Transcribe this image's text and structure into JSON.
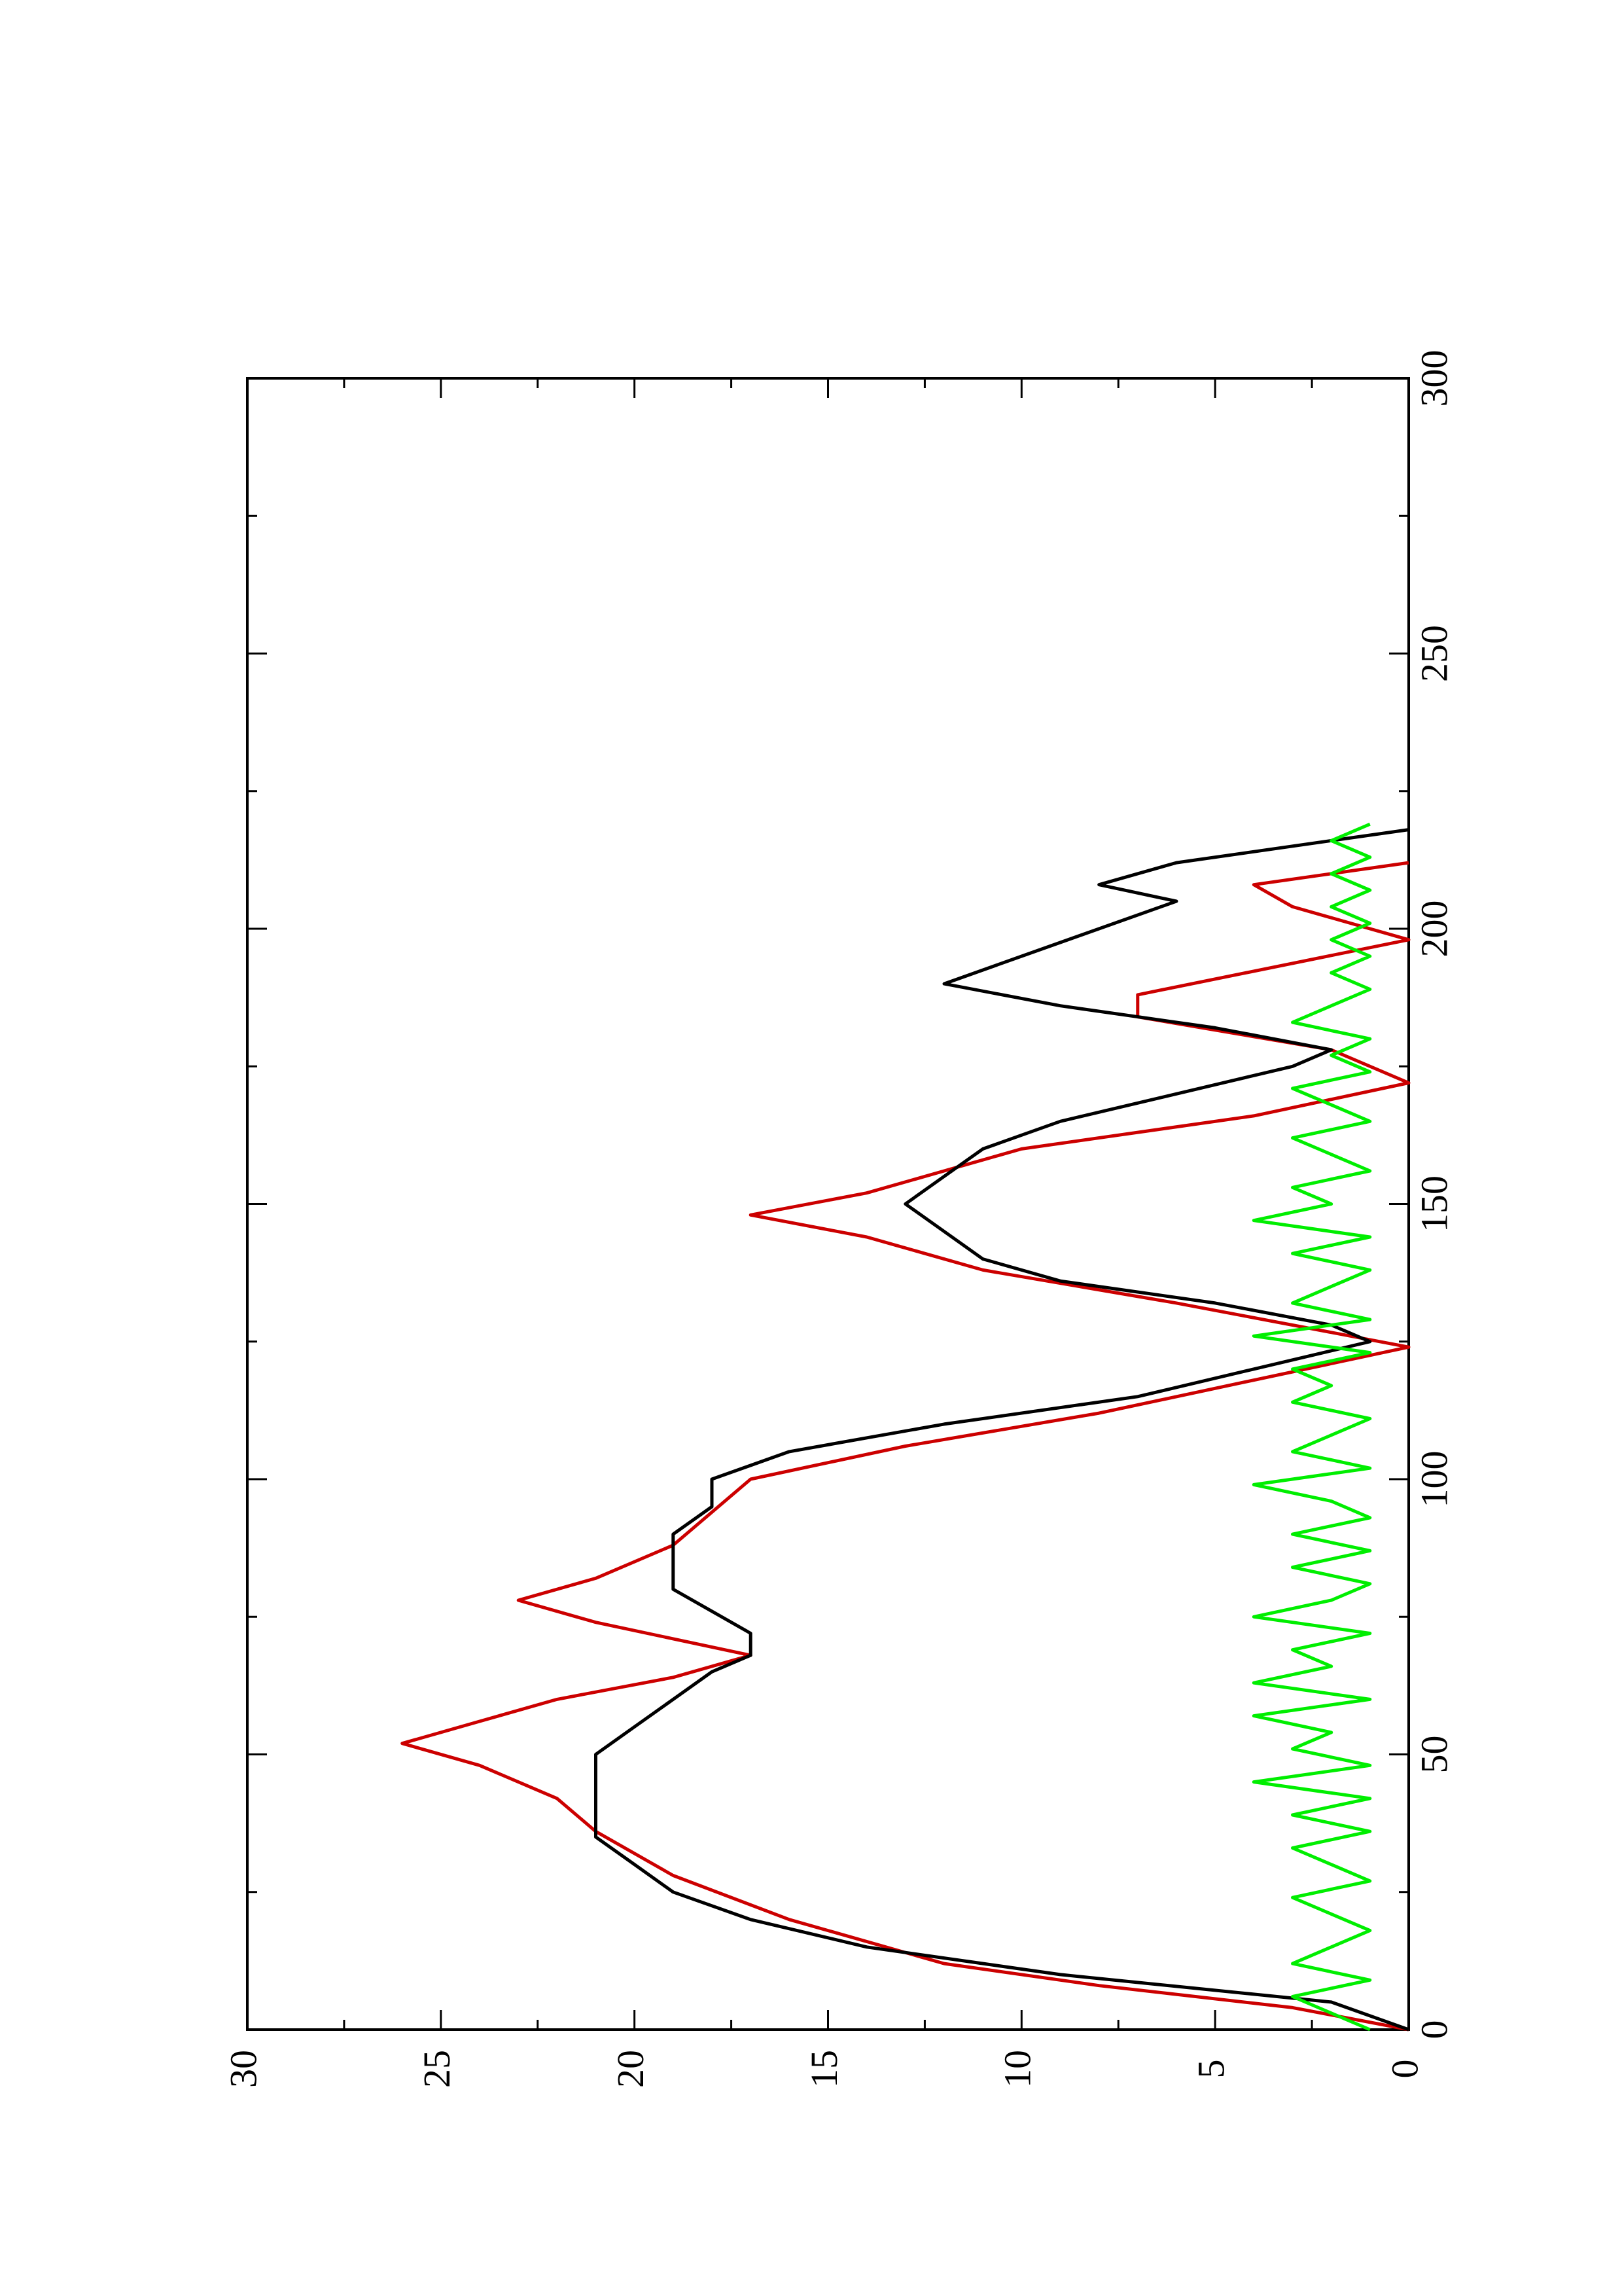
{
  "chart_data": {
    "type": "line",
    "orientation": "rotated-90-ccw",
    "title": "",
    "xlabel": "",
    "ylabel": "",
    "xlim": [
      0,
      300
    ],
    "ylim": [
      0,
      30
    ],
    "x_ticks": [
      "0",
      "50",
      "100",
      "150",
      "200",
      "250",
      "300"
    ],
    "y_ticks": [
      "0",
      "5",
      "10",
      "15",
      "20",
      "25",
      "30"
    ],
    "grid": false,
    "legend": "none",
    "series": [
      {
        "color": "#cc0000",
        "style": "step",
        "x": [
          0,
          4,
          8,
          12,
          20,
          28,
          36,
          42,
          48,
          52,
          56,
          60,
          64,
          68,
          74,
          78,
          82,
          88,
          100,
          106,
          112,
          124,
          132,
          138,
          144,
          148,
          152,
          156,
          160,
          166,
          172,
          178,
          184,
          188,
          198,
          204,
          208,
          212
        ],
        "y": [
          0,
          3,
          8,
          12,
          16,
          19,
          21,
          22,
          24,
          26,
          24,
          22,
          19,
          17,
          21,
          23,
          21,
          19,
          17,
          13,
          8,
          0,
          6,
          11,
          14,
          17,
          14,
          12,
          10,
          4,
          0,
          2,
          7,
          7,
          0,
          3,
          4,
          0
        ]
      },
      {
        "color": "#000000",
        "style": "line",
        "x": [
          0,
          5,
          10,
          15,
          20,
          25,
          30,
          35,
          40,
          45,
          50,
          55,
          60,
          65,
          68,
          72,
          76,
          80,
          85,
          90,
          95,
          100,
          105,
          110,
          115,
          120,
          125,
          128,
          132,
          136,
          140,
          145,
          150,
          155,
          160,
          165,
          170,
          175,
          178,
          182,
          186,
          190,
          195,
          200,
          205,
          208,
          212,
          216,
          218
        ],
        "y": [
          0,
          2,
          9,
          14,
          17,
          19,
          20,
          21,
          21,
          21,
          21,
          20,
          19,
          18,
          17,
          17,
          18,
          19,
          19,
          19,
          18,
          18,
          16,
          12,
          7,
          4,
          1,
          2,
          5,
          9,
          11,
          12,
          13,
          12,
          11,
          9,
          6,
          3,
          2,
          5,
          9,
          12,
          10,
          8,
          6,
          8,
          6,
          2,
          0
        ]
      },
      {
        "color": "#00ee00",
        "style": "line",
        "x": [
          0,
          3,
          6,
          9,
          12,
          15,
          18,
          21,
          24,
          27,
          30,
          33,
          36,
          39,
          42,
          45,
          48,
          51,
          54,
          57,
          60,
          63,
          66,
          69,
          72,
          75,
          78,
          81,
          84,
          87,
          90,
          93,
          96,
          99,
          102,
          105,
          108,
          111,
          114,
          117,
          120,
          123,
          126,
          129,
          132,
          135,
          138,
          141,
          144,
          147,
          150,
          153,
          156,
          159,
          162,
          165,
          168,
          171,
          174,
          177,
          180,
          183,
          186,
          189,
          192,
          195,
          198,
          201,
          204,
          207,
          210,
          213,
          216,
          219
        ],
        "y": [
          1,
          2,
          3,
          1,
          3,
          2,
          1,
          2,
          3,
          1,
          2,
          3,
          1,
          3,
          1,
          4,
          1,
          3,
          2,
          4,
          1,
          4,
          2,
          3,
          1,
          4,
          2,
          1,
          3,
          1,
          3,
          1,
          2,
          4,
          1,
          3,
          2,
          1,
          3,
          2,
          3,
          1,
          4,
          1,
          3,
          2,
          1,
          3,
          1,
          4,
          2,
          3,
          1,
          2,
          3,
          1,
          2,
          3,
          1,
          2,
          1,
          3,
          2,
          1,
          2,
          1,
          2,
          1,
          2,
          1,
          2,
          1,
          2,
          1
        ]
      }
    ]
  }
}
